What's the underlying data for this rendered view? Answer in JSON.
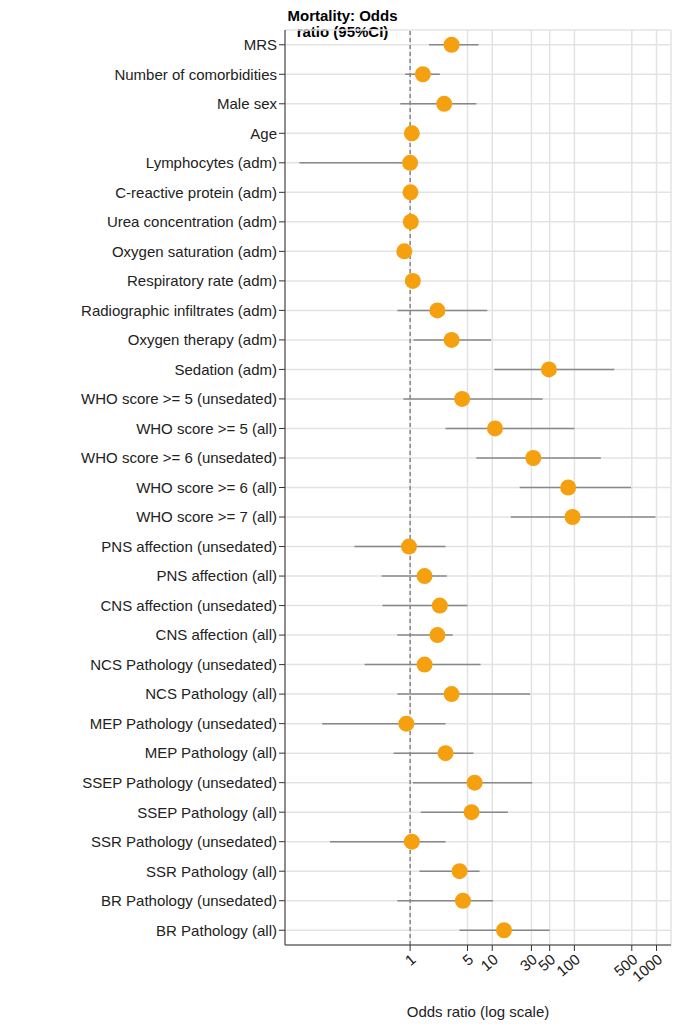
{
  "chart_data": {
    "type": "scatter",
    "title": "Mortality: Odds ratio (95%CI)",
    "x_label": "Odds ratio (log scale)",
    "categories": [
      "MRS",
      "Number of comorbidities",
      "Male sex",
      "Age",
      "Lymphocytes (adm)",
      "C-reactive protein (adm)",
      "Urea concentration (adm)",
      "Oxygen saturation (adm)",
      "Respiratory rate (adm)",
      "Radiographic infiltrates (adm)",
      "Oxygen therapy (adm)",
      "Sedation (adm)",
      "WHO score >= 5 (unsedated)",
      "WHO score >= 5 (all)",
      "WHO score >= 6 (unsedated)",
      "WHO score >= 6 (all)",
      "WHO score >= 7 (all)",
      "PNS affection (unsedated)",
      "PNS affection (all)",
      "CNS affection (unsedated)",
      "CNS affection (all)",
      "NCS Pathology (unsedated)",
      "NCS Pathology (all)",
      "MEP Pathology (unsedated)",
      "MEP Pathology (all)",
      "SSEP Pathology (unsedated)",
      "SSEP Pathology (all)",
      "SSR Pathology (unsedated)",
      "SSR Pathology (all)",
      "BR Pathology (unsedated)",
      "BR Pathology (all)"
    ],
    "values": [
      3.2,
      1.43,
      2.6,
      1.05,
      1.0,
      1.01,
      1.02,
      0.85,
      1.08,
      2.15,
      3.2,
      49,
      4.3,
      10.8,
      31.6,
      84,
      95,
      0.97,
      1.5,
      2.3,
      2.15,
      1.5,
      3.2,
      0.9,
      2.7,
      6.1,
      5.6,
      1.05,
      4.0,
      4.4,
      13.9
    ],
    "ci_lower": [
      1.7,
      0.87,
      0.76,
      1.02,
      0.045,
      1.0,
      1.0,
      0.8,
      1.03,
      0.7,
      1.1,
      10.6,
      0.83,
      2.7,
      6.4,
      21.6,
      16.8,
      0.21,
      0.45,
      0.46,
      0.7,
      0.28,
      0.7,
      0.085,
      0.63,
      1.08,
      1.35,
      0.106,
      1.3,
      0.7,
      4.0
    ],
    "ci_upper": [
      6.8,
      2.3,
      6.4,
      1.08,
      1.1,
      1.02,
      1.04,
      0.92,
      1.13,
      8.7,
      9.7,
      306,
      41,
      100,
      210,
      490,
      970,
      2.7,
      2.8,
      5.0,
      3.3,
      7.2,
      29,
      2.7,
      5.9,
      30.6,
      15.5,
      2.7,
      7.0,
      10.2,
      50
    ],
    "color": "#f5a00f",
    "error_color": "#888888",
    "reference_value": 1,
    "log": "x",
    "xlim": [
      0.03,
      1500
    ],
    "xticks": [
      1,
      5,
      10,
      30,
      50,
      100,
      500,
      1000
    ],
    "grid": true
  }
}
